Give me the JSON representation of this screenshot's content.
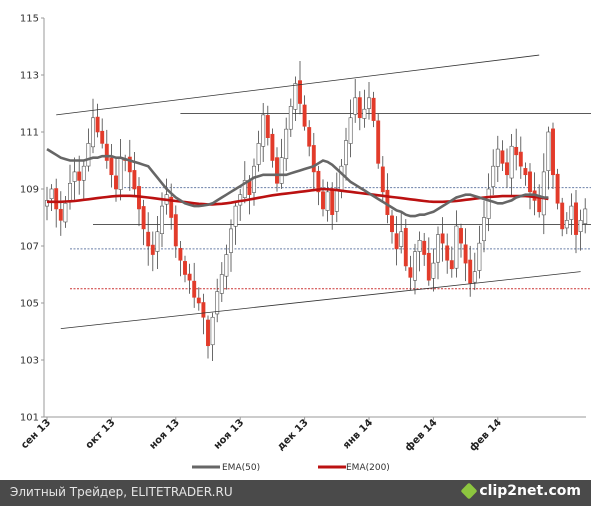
{
  "chart_data": {
    "type": "candlestick",
    "ylim": [
      101,
      115
    ],
    "y_ticks": [
      "101",
      "103",
      "105",
      "107",
      "109",
      "111",
      "113",
      "115"
    ],
    "x_ticks": [
      "сен 13",
      "окт 13",
      "ноя 13",
      "ноя 13",
      "дек 13",
      "янв 14",
      "фев 14",
      "фев 14"
    ],
    "x_tick_positions": [
      0,
      14,
      28,
      42,
      56,
      70,
      84,
      98
    ],
    "n_candles": 118,
    "grid": false,
    "legend": {
      "placement": "bottom",
      "entries": [
        {
          "name": "EMA(50)",
          "color": "#666666"
        },
        {
          "name": "EMA(200)",
          "color": "#bb1111"
        }
      ]
    },
    "colors": {
      "up": "#ffffff",
      "down": "#e23b2a",
      "wick": "#444444",
      "ema50": "#666666",
      "ema200": "#bb1111"
    },
    "levels": [
      {
        "name": "resistance",
        "y": 111.65,
        "x0": 29,
        "x1": 119,
        "style": "solid"
      },
      {
        "name": "support",
        "y": 107.75,
        "x0": 10,
        "x1": 119,
        "style": "solid"
      },
      {
        "name": "dotted-upper",
        "y": 109.05,
        "x0": 16,
        "x1": 130,
        "style": "dotted-blue"
      },
      {
        "name": "dotted-lower",
        "y": 106.9,
        "x0": 5,
        "x1": 124,
        "style": "dotted-blue"
      },
      {
        "name": "dotted-red",
        "y": 105.5,
        "x0": 5,
        "x1": 118,
        "style": "dotted-red"
      }
    ],
    "trendlines": [
      {
        "name": "upper-channel",
        "x0": 2,
        "y0": 111.6,
        "x1": 107,
        "y1": 113.7
      },
      {
        "name": "lower-channel",
        "x0": 3,
        "y0": 104.1,
        "x1": 116,
        "y1": 106.1
      }
    ],
    "closes": [
      108.6,
      109.0,
      108.3,
      107.9,
      108.5,
      109.2,
      109.6,
      109.3,
      109.8,
      110.6,
      111.5,
      111.0,
      110.6,
      110.0,
      109.5,
      109.0,
      110.1,
      110.0,
      109.6,
      109.0,
      108.3,
      107.6,
      107.0,
      106.7,
      107.5,
      108.4,
      108.8,
      108.0,
      107.0,
      106.5,
      106.0,
      105.8,
      105.2,
      105.0,
      104.5,
      103.5,
      104.5,
      105.4,
      106.0,
      106.7,
      107.6,
      108.4,
      108.8,
      109.3,
      108.8,
      109.8,
      110.6,
      111.6,
      110.8,
      110.0,
      109.2,
      110.1,
      111.1,
      111.9,
      112.7,
      112.0,
      111.2,
      110.5,
      109.6,
      108.9,
      108.3,
      108.9,
      108.1,
      109.0,
      109.8,
      110.7,
      111.5,
      112.2,
      111.5,
      111.8,
      112.2,
      111.4,
      109.9,
      108.9,
      108.1,
      107.5,
      106.9,
      107.5,
      106.3,
      105.9,
      106.8,
      107.2,
      106.7,
      105.8,
      106.4,
      107.4,
      107.1,
      106.5,
      106.2,
      107.7,
      107.1,
      106.4,
      105.7,
      106.1,
      107.1,
      108.0,
      109.0,
      109.8,
      110.4,
      109.9,
      109.5,
      110.5,
      110.2,
      109.8,
      109.5,
      108.9,
      108.6,
      108.2,
      109.6,
      111.0,
      109.5,
      108.5,
      107.6,
      107.9,
      108.4,
      107.4,
      107.9,
      108.3
    ],
    "ema50": [
      110.4,
      110.3,
      110.2,
      110.1,
      110.05,
      110.0,
      110.0,
      110.0,
      110.0,
      110.05,
      110.1,
      110.1,
      110.15,
      110.15,
      110.15,
      110.1,
      110.1,
      110.05,
      110.0,
      109.95,
      109.9,
      109.85,
      109.8,
      109.6,
      109.4,
      109.2,
      109.0,
      108.85,
      108.7,
      108.6,
      108.5,
      108.45,
      108.4,
      108.4,
      108.42,
      108.45,
      108.5,
      108.6,
      108.7,
      108.8,
      108.9,
      109.0,
      109.1,
      109.2,
      109.3,
      109.4,
      109.45,
      109.5,
      109.5,
      109.5,
      109.5,
      109.5,
      109.5,
      109.55,
      109.6,
      109.65,
      109.7,
      109.75,
      109.8,
      109.9,
      110.0,
      109.95,
      109.85,
      109.7,
      109.55,
      109.4,
      109.25,
      109.15,
      109.05,
      108.95,
      108.85,
      108.75,
      108.65,
      108.55,
      108.45,
      108.35,
      108.25,
      108.2,
      108.1,
      108.05,
      108.05,
      108.1,
      108.1,
      108.15,
      108.2,
      108.3,
      108.4,
      108.5,
      108.6,
      108.7,
      108.75,
      108.8,
      108.8,
      108.75,
      108.7,
      108.65,
      108.6,
      108.55,
      108.5,
      108.5,
      108.55,
      108.6,
      108.7,
      108.75,
      108.8,
      108.8,
      108.8,
      108.75,
      108.7,
      108.7
    ],
    "ema200": [
      108.55,
      108.55,
      108.55,
      108.55,
      108.56,
      108.57,
      108.58,
      108.6,
      108.62,
      108.64,
      108.66,
      108.68,
      108.7,
      108.72,
      108.74,
      108.75,
      108.76,
      108.76,
      108.76,
      108.75,
      108.74,
      108.72,
      108.7,
      108.68,
      108.66,
      108.64,
      108.62,
      108.6,
      108.58,
      108.56,
      108.54,
      108.52,
      108.5,
      108.48,
      108.47,
      108.46,
      108.46,
      108.47,
      108.48,
      108.5,
      108.52,
      108.55,
      108.58,
      108.6,
      108.63,
      108.66,
      108.69,
      108.72,
      108.75,
      108.78,
      108.8,
      108.82,
      108.84,
      108.86,
      108.88,
      108.9,
      108.92,
      108.94,
      108.96,
      108.98,
      109.0,
      108.99,
      108.98,
      108.96,
      108.94,
      108.92,
      108.9,
      108.88,
      108.86,
      108.84,
      108.82,
      108.8,
      108.78,
      108.76,
      108.74,
      108.72,
      108.7,
      108.68,
      108.66,
      108.64,
      108.62,
      108.6,
      108.58,
      108.56,
      108.55,
      108.55,
      108.55,
      108.56,
      108.57,
      108.58,
      108.6,
      108.62,
      108.64,
      108.66,
      108.68,
      108.7,
      108.72,
      108.73,
      108.74,
      108.75,
      108.75,
      108.75,
      108.75,
      108.75,
      108.75,
      108.74,
      108.72,
      108.7,
      108.68,
      108.65
    ]
  },
  "legend": {
    "ema50_label": "EMA(50)",
    "ema200_label": "EMA(200)"
  },
  "footer": {
    "text": "Элитный Трейдер, ELITETRADER.RU",
    "logo": "clip2net.com"
  }
}
